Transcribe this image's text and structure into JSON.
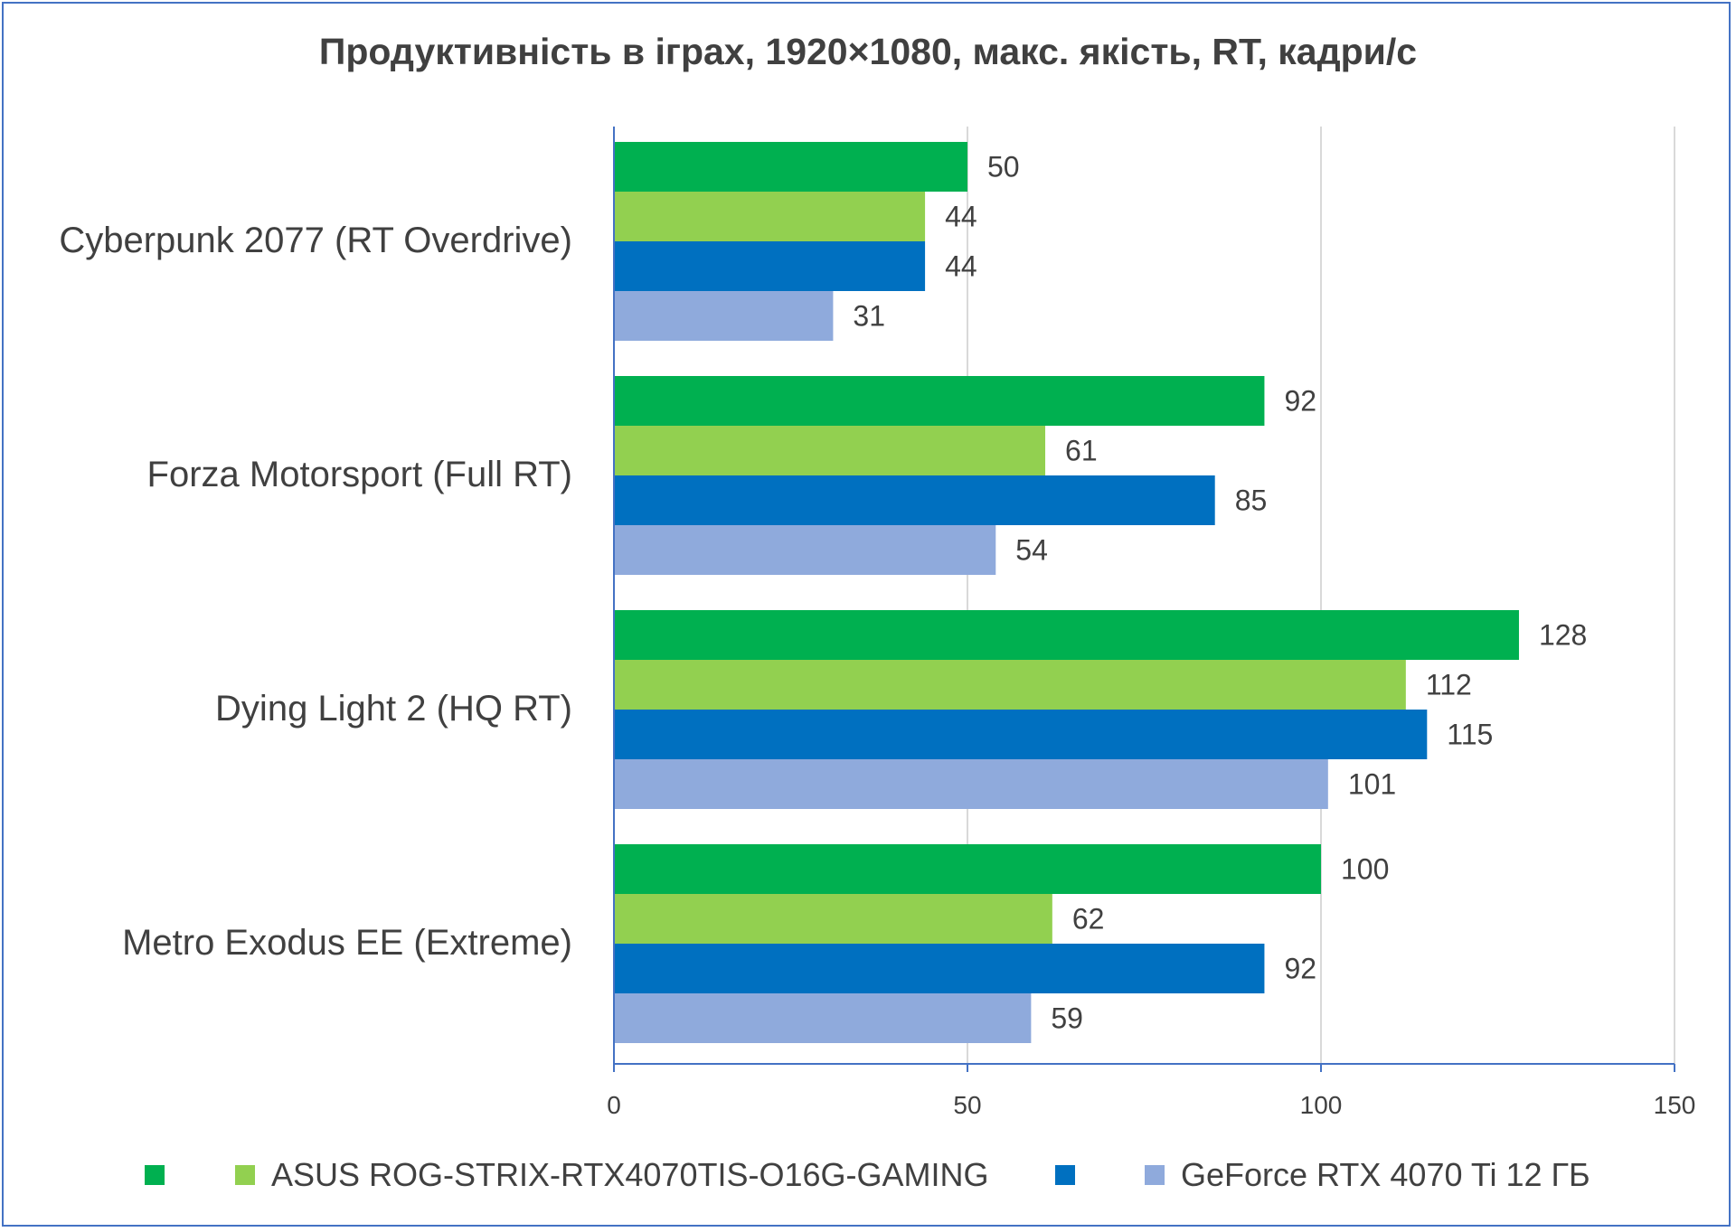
{
  "chart_data": {
    "type": "bar",
    "orientation": "horizontal",
    "title": "Продуктивність в іграх, 1920×1080, макс. якість, RT, кадри/с",
    "categories": [
      "Cyberpunk 2077 (RT Overdrive)",
      "Forza Motorsport (Full RT)",
      "Dying Light 2 (HQ RT)",
      "Metro Exodus EE (Extreme)"
    ],
    "series": [
      {
        "name": "",
        "color": "#00b050",
        "values": [
          50,
          92,
          128,
          100
        ]
      },
      {
        "name": "ASUS ROG-STRIX-RTX4070TIS-O16G-GAMING",
        "color": "#92d050",
        "values": [
          44,
          61,
          112,
          62
        ]
      },
      {
        "name": "",
        "color": "#0070c0",
        "values": [
          44,
          85,
          115,
          92
        ]
      },
      {
        "name": "GeForce RTX 4070 Ti 12 ГБ",
        "color": "#8faadc",
        "values": [
          31,
          54,
          101,
          59
        ]
      }
    ],
    "xlim": [
      0,
      150
    ],
    "xticks": [
      0,
      50,
      100,
      150
    ],
    "grid": true,
    "data_labels": true,
    "legend_position": "bottom",
    "frame_color": "#4472c4",
    "axis_color": "#4472c4",
    "gridline_color": "#d9d9d9"
  }
}
